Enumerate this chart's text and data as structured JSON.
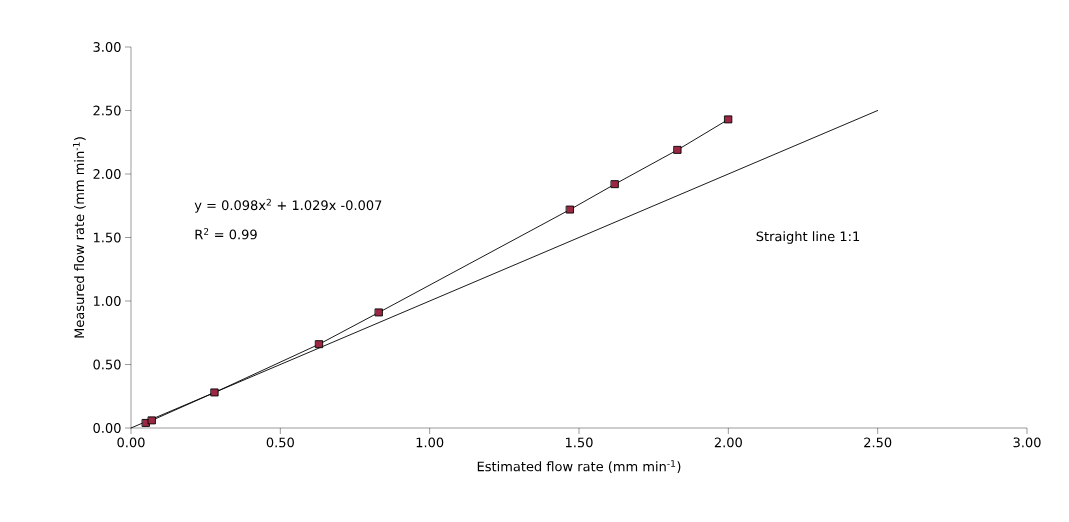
{
  "chart_data": {
    "type": "line",
    "xlabel": "Estimated flow rate (mm min$^{-1}$)",
    "ylabel": "Measured flow rate (mm min$^{-1}$)",
    "annotations": [
      "y = 0.098x$^{2}$ + 1.029x -0.007",
      "R$^{2}$ = 0.99",
      "Straight line 1:1"
    ],
    "xlim": [
      0,
      3
    ],
    "ylim": [
      0,
      3
    ],
    "xticks": [
      {
        "value": 0,
        "label": "0.00"
      },
      {
        "value": 0.5,
        "label": "0.50"
      },
      {
        "value": 1,
        "label": "1.00"
      },
      {
        "value": 1.5,
        "label": "1.50"
      },
      {
        "value": 2,
        "label": "2.00"
      },
      {
        "value": 2.5,
        "label": "2.50"
      },
      {
        "value": 3,
        "label": "3.00"
      }
    ],
    "yticks": [
      {
        "value": 0,
        "label": "0.00"
      },
      {
        "value": 0.5,
        "label": "0.50"
      },
      {
        "value": 1,
        "label": "1.00"
      },
      {
        "value": 1.5,
        "label": "1.50"
      },
      {
        "value": 2,
        "label": "2.00"
      },
      {
        "value": 2.5,
        "label": "2.50"
      },
      {
        "value": 3,
        "label": "3.00"
      }
    ],
    "grid": false,
    "series": [
      {
        "marker": "square",
        "color": "#9b2743",
        "x": [
          0.05,
          0.07,
          0.28,
          0.63,
          0.83,
          1.47,
          1.62,
          1.83,
          2.0
        ],
        "values": [
          0.04,
          0.06,
          0.28,
          0.66,
          0.91,
          1.72,
          1.92,
          2.19,
          2.43
        ]
      },
      {
        "marker": "none",
        "color": "#000000",
        "x": [
          0,
          2.5
        ],
        "values": [
          0,
          2.5
        ]
      }
    ]
  }
}
